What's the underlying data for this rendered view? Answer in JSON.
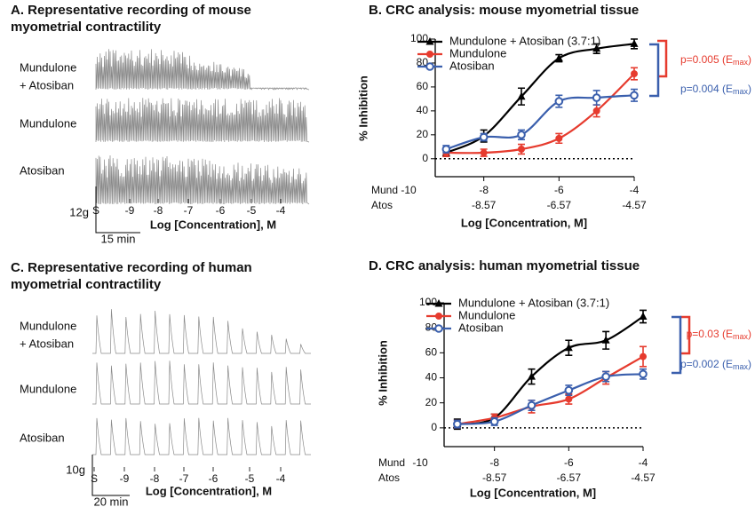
{
  "panels": [
    {
      "title": [
        "A. Representative recording of mouse",
        "myometrial contractility"
      ],
      "row_labels": [
        [
          "Mundulone",
          "+ Atosiban"
        ],
        [
          "Mundulone"
        ],
        [
          "Atosiban"
        ]
      ],
      "stim_labels": [
        "S",
        "-9",
        "-8",
        "-7",
        "-6",
        "-5",
        "-4"
      ],
      "xlabel": "Log [Concentration], M",
      "scale_y": "12g",
      "scale_x": "15 min"
    },
    {
      "title": [
        "C. Representative recording of human",
        "myometrial contractility"
      ],
      "row_labels": [
        [
          "Mundulone",
          "+ Atosiban"
        ],
        [
          "Mundulone"
        ],
        [
          "Atosiban"
        ]
      ],
      "stim_labels": [
        "S",
        "-9",
        "-8",
        "-7",
        "-6",
        "-5",
        "-4"
      ],
      "xlabel": "Log [Concentration], M",
      "scale_y": "10g",
      "scale_x": "20 min"
    }
  ],
  "chart_data": [
    {
      "type": "line",
      "title": "B. CRC analysis: mouse myometrial tissue",
      "xlabel": "Log [Concentration, M]",
      "ylabel": "% Inhibition",
      "x": [
        -9,
        -8,
        -7,
        -6,
        -5,
        -4
      ],
      "xlim": [
        -10,
        -4
      ],
      "xticks": [
        -10,
        -8,
        -6,
        -4
      ],
      "x_axis_name": "Mund",
      "x2lim": [
        -10.57,
        -4.57
      ],
      "x2ticks": [
        -8.57,
        -6.57,
        -4.57
      ],
      "x2_axis_name": "Atos",
      "ylim": [
        -15,
        100
      ],
      "yticks": [
        0,
        20,
        40,
        60,
        80,
        100
      ],
      "series": [
        {
          "name": "Mundulone + Atosiban (3.7:1)",
          "color": "#000000",
          "marker": "triangle",
          "values": [
            5,
            19,
            52,
            84,
            92,
            96
          ],
          "errors": [
            3,
            5,
            7,
            3,
            4,
            4
          ]
        },
        {
          "name": "Mundulone",
          "color": "#e63b2e",
          "marker": "circle",
          "values": [
            5,
            5,
            8,
            17,
            40,
            71
          ],
          "errors": [
            3,
            3,
            4,
            4,
            5,
            5
          ]
        },
        {
          "name": "Atosiban",
          "color": "#3a5fad",
          "marker": "open-circle",
          "values": [
            8,
            18,
            20,
            48,
            51,
            53
          ],
          "errors": [
            3,
            3,
            4,
            5,
            6,
            5
          ]
        }
      ],
      "annotations": [
        {
          "prefix": "p=0.005 (E",
          "sub": "max",
          "suffix": ")",
          "color": "#e63b2e"
        },
        {
          "prefix": "p=0.004 (E",
          "sub": "max",
          "suffix": ")",
          "color": "#3a5fad"
        }
      ]
    },
    {
      "type": "line",
      "title": "D. CRC analysis: human myometrial tissue",
      "xlabel": "Log [Concentration, M]",
      "ylabel": "% Inhibition",
      "x": [
        -9,
        -8,
        -7,
        -6,
        -5,
        -4
      ],
      "xlim": [
        -10,
        -4
      ],
      "xticks": [
        -10,
        -8,
        -6,
        -4
      ],
      "x_axis_name": "Mund",
      "x2lim": [
        -10.57,
        -4.57
      ],
      "x2ticks": [
        -8.57,
        -6.57,
        -4.57
      ],
      "x2_axis_name": "Atos",
      "ylim": [
        -15,
        100
      ],
      "yticks": [
        0,
        20,
        40,
        60,
        80,
        100
      ],
      "series": [
        {
          "name": "Mundulone + Atosiban (3.7:1)",
          "color": "#000000",
          "marker": "triangle",
          "values": [
            3,
            8,
            41,
            64,
            70,
            89
          ],
          "errors": [
            4,
            3,
            6,
            6,
            7,
            5
          ]
        },
        {
          "name": "Mundulone",
          "color": "#e63b2e",
          "marker": "circle",
          "values": [
            3,
            8,
            17,
            23,
            40,
            57
          ],
          "errors": [
            3,
            3,
            5,
            4,
            5,
            8
          ]
        },
        {
          "name": "Atosiban",
          "color": "#3a5fad",
          "marker": "open-circle",
          "values": [
            3,
            5,
            18,
            30,
            41,
            43
          ],
          "errors": [
            3,
            3,
            4,
            4,
            4,
            4
          ]
        }
      ],
      "annotations": [
        {
          "prefix": "p=0.03 (E",
          "sub": "max",
          "suffix": ")",
          "color": "#e63b2e"
        },
        {
          "prefix": "p=0.002 (E",
          "sub": "max",
          "suffix": ")",
          "color": "#3a5fad"
        }
      ]
    }
  ]
}
